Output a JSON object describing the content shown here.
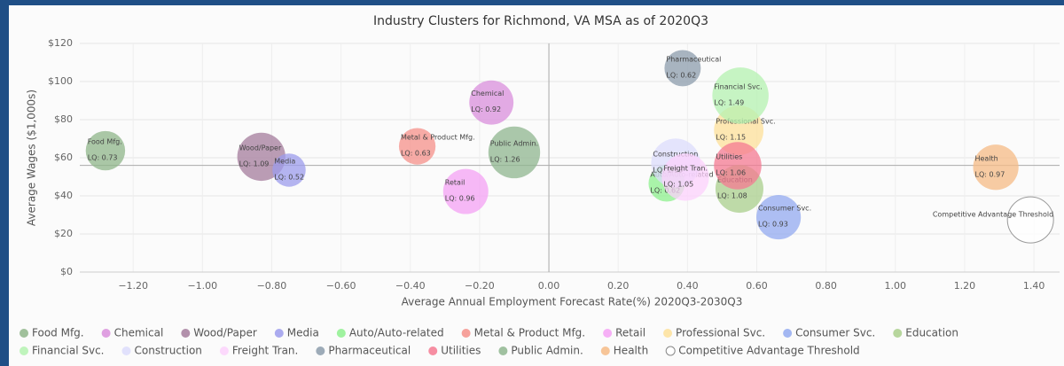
{
  "chart_data": {
    "type": "bubble",
    "title": "Industry Clusters for Richmond, VA MSA as of 2020Q3",
    "x_label": "Average Annual Employment Forecast Rate(%) 2020Q3-2030Q3",
    "y_label": "Average Wages ($1,000s)",
    "xlim": [
      -1.354,
      1.474
    ],
    "xticks": [
      {
        "value": -1.2,
        "label": "−1.20"
      },
      {
        "value": -1.0,
        "label": "−1.00"
      },
      {
        "value": -0.8,
        "label": "−0.80"
      },
      {
        "value": -0.6,
        "label": "−0.60"
      },
      {
        "value": -0.4,
        "label": "−0.40"
      },
      {
        "value": -0.2,
        "label": "−0.20"
      },
      {
        "value": 0,
        "label": "0.00"
      },
      {
        "value": 0.2,
        "label": "0.20"
      },
      {
        "value": 0.4,
        "label": "0.40"
      },
      {
        "value": 0.6,
        "label": "0.60"
      },
      {
        "value": 0.8,
        "label": "0.80"
      },
      {
        "value": 1.0,
        "label": "1.00"
      },
      {
        "value": 1.2,
        "label": "1.20"
      },
      {
        "value": 1.4,
        "label": "1.40"
      }
    ],
    "ylim": [
      0,
      120
    ],
    "yticks": [
      {
        "value": 0,
        "label": "$0"
      },
      {
        "value": 20,
        "label": "$20"
      },
      {
        "value": 40,
        "label": "$40"
      },
      {
        "value": 60,
        "label": "$60"
      },
      {
        "value": 80,
        "label": "$80"
      },
      {
        "value": 100,
        "label": "$100"
      },
      {
        "value": 120,
        "label": "$120"
      }
    ],
    "grid": true,
    "reference_lines": {
      "x": 0,
      "y": 56
    },
    "series": [
      {
        "name": "Food Mfg.",
        "color": "#8fb58a",
        "x": [
          -1.28
        ],
        "values": [
          63.7
        ],
        "sizes": [
          0.73
        ],
        "value_labels": [
          "LQ: 0.73"
        ]
      },
      {
        "name": "Chemical",
        "color": "#d98fdc",
        "x": [
          -0.166
        ],
        "values": [
          89
        ],
        "sizes": [
          0.92
        ],
        "value_labels": [
          "LQ: 0.92"
        ]
      },
      {
        "name": "Wood/Paper",
        "color": "#a47c9c",
        "x": [
          -0.83
        ],
        "values": [
          60.5
        ],
        "sizes": [
          1.09
        ],
        "value_labels": [
          "LQ: 1.09"
        ]
      },
      {
        "name": "Media",
        "color": "#9c9cec",
        "x": [
          -0.75
        ],
        "values": [
          53.5
        ],
        "sizes": [
          0.52
        ],
        "value_labels": [
          "LQ: 0.52"
        ]
      },
      {
        "name": "Auto/Auto-related",
        "color": "#8ef08e",
        "x": [
          0.34
        ],
        "values": [
          46.5
        ],
        "sizes": [
          0.62
        ],
        "value_labels": [
          "LQ: 0.62"
        ]
      },
      {
        "name": "Metal & Product Mfg.",
        "color": "#f5908a",
        "x": [
          -0.38
        ],
        "values": [
          66
        ],
        "sizes": [
          0.63
        ],
        "value_labels": [
          "LQ: 0.63"
        ]
      },
      {
        "name": "Retail",
        "color": "#f4a2f4",
        "x": [
          -0.24
        ],
        "values": [
          42.3
        ],
        "sizes": [
          0.96
        ],
        "value_labels": [
          "LQ: 0.96"
        ]
      },
      {
        "name": "Professional Svc.",
        "color": "#fde09a",
        "x": [
          0.548
        ],
        "values": [
          74.4
        ],
        "sizes": [
          1.15
        ],
        "value_labels": [
          "LQ: 1.15"
        ]
      },
      {
        "name": "Consumer Svc.",
        "color": "#93aaf0",
        "x": [
          0.663
        ],
        "values": [
          28.8
        ],
        "sizes": [
          0.93
        ],
        "value_labels": [
          "LQ: 0.93"
        ]
      },
      {
        "name": "Education",
        "color": "#aacf8c",
        "x": [
          0.55
        ],
        "values": [
          43.7
        ],
        "sizes": [
          1.08
        ],
        "value_labels": [
          "LQ: 1.08"
        ]
      },
      {
        "name": "Financial Svc.",
        "color": "#b4f2b0",
        "x": [
          0.553
        ],
        "values": [
          92.6
        ],
        "sizes": [
          1.49
        ],
        "value_labels": [
          "LQ: 1.49"
        ]
      },
      {
        "name": "Construction",
        "color": "#dcdcfc",
        "x": [
          0.366
        ],
        "values": [
          57.2
        ],
        "sizes": [
          1.13
        ],
        "value_labels": [
          "LQ: 1.13"
        ]
      },
      {
        "name": "Freight Tran.",
        "color": "#fcd2fc",
        "x": [
          0.394
        ],
        "values": [
          49.8
        ],
        "sizes": [
          1.05
        ],
        "value_labels": [
          "LQ: 1.05"
        ]
      },
      {
        "name": "Pharmaceutical",
        "color": "#8c9cac",
        "x": [
          0.386
        ],
        "values": [
          107
        ],
        "sizes": [
          0.62
        ],
        "value_labels": [
          "LQ: 0.62"
        ]
      },
      {
        "name": "Utilities",
        "color": "#f47a92",
        "x": [
          0.545
        ],
        "values": [
          55.8
        ],
        "sizes": [
          1.06
        ],
        "value_labels": [
          "LQ: 1.06"
        ]
      },
      {
        "name": "Public Admin.",
        "color": "#8fb68f",
        "x": [
          -0.1
        ],
        "values": [
          62.8
        ],
        "sizes": [
          1.26
        ],
        "value_labels": [
          "LQ: 1.26"
        ]
      },
      {
        "name": "Health",
        "color": "#f6bb86",
        "x": [
          1.29
        ],
        "values": [
          55
        ],
        "sizes": [
          0.97
        ],
        "value_labels": [
          "LQ: 0.97"
        ]
      },
      {
        "name": "Competitive Advantage Threshold",
        "color": "#ffffff",
        "x": [
          1.39
        ],
        "values": [
          27.4
        ],
        "sizes": [
          1
        ]
      }
    ]
  }
}
